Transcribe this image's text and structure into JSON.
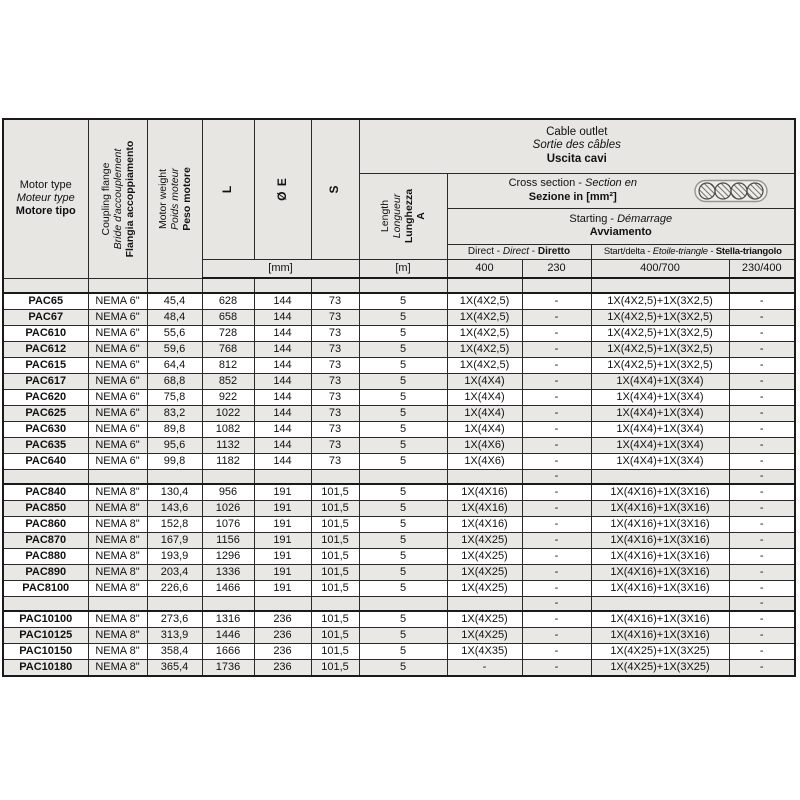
{
  "table": {
    "header": {
      "motor_type": {
        "en": "Motor type",
        "fr": "Moteur type",
        "it": "Motore tipo"
      },
      "coupling_flange": {
        "en": "Coupling flange",
        "fr": "Bride d'accouplement",
        "it": "Flangia accoppiamento"
      },
      "motor_weight": {
        "en": "Motor weight",
        "fr": "Poids moteur",
        "it": "Peso motore"
      },
      "dim_l": "L",
      "dim_e": "Ø E",
      "dim_s": "S",
      "length": {
        "en": "Length",
        "fr": "Longueur",
        "it": "Lunghezza",
        "label": "A"
      },
      "cable_outlet": {
        "en": "Cable outlet",
        "fr": "Sortie des câbles",
        "it": "Uscita cavi"
      },
      "cross_section": {
        "part1": "Cross section - ",
        "part2_italic": "Section en",
        "line2_bold": "Sezione in [mm²]"
      },
      "starting": {
        "part1": "Starting - ",
        "part2_italic": "Démarrage",
        "line2_bold": "Avviamento"
      },
      "direct": {
        "part1": "Direct - ",
        "part2_italic": "Direct",
        "part3": " - ",
        "part4_bold": "Diretto"
      },
      "start_delta": {
        "part1": "Start/delta - ",
        "part2_italic": "Etoile-triangle",
        "part3": " - ",
        "part4_bold": "Stella-triangolo"
      },
      "mm_unit": "[mm]",
      "m_unit": "[m]",
      "voltages": [
        "400",
        "230",
        "400/700",
        "230/400"
      ]
    },
    "icons": {
      "cable_icon": "cable-cross-section-icon"
    },
    "colors": {
      "header_bg": "#e8e6e3",
      "row_shade": "#e9e8e5",
      "border": "#1a1a1a"
    },
    "rows": [
      {
        "separator": true,
        "cells": [
          "",
          "",
          "",
          "",
          "",
          "",
          "",
          "",
          "",
          "",
          ""
        ]
      },
      {
        "separator": false,
        "cells": [
          "PAC65",
          "NEMA 6\"",
          "45,4",
          "628",
          "144",
          "73",
          "5",
          "1X(4X2,5)",
          "-",
          "1X(4X2,5)+1X(3X2,5)",
          "-"
        ]
      },
      {
        "separator": false,
        "cells": [
          "PAC67",
          "NEMA 6\"",
          "48,4",
          "658",
          "144",
          "73",
          "5",
          "1X(4X2,5)",
          "-",
          "1X(4X2,5)+1X(3X2,5)",
          "-"
        ]
      },
      {
        "separator": false,
        "cells": [
          "PAC610",
          "NEMA 6\"",
          "55,6",
          "728",
          "144",
          "73",
          "5",
          "1X(4X2,5)",
          "-",
          "1X(4X2,5)+1X(3X2,5)",
          "-"
        ]
      },
      {
        "separator": false,
        "cells": [
          "PAC612",
          "NEMA 6\"",
          "59,6",
          "768",
          "144",
          "73",
          "5",
          "1X(4X2,5)",
          "-",
          "1X(4X2,5)+1X(3X2,5)",
          "-"
        ]
      },
      {
        "separator": false,
        "cells": [
          "PAC615",
          "NEMA 6\"",
          "64,4",
          "812",
          "144",
          "73",
          "5",
          "1X(4X2,5)",
          "-",
          "1X(4X2,5)+1X(3X2,5)",
          "-"
        ]
      },
      {
        "separator": false,
        "cells": [
          "PAC617",
          "NEMA 6\"",
          "68,8",
          "852",
          "144",
          "73",
          "5",
          "1X(4X4)",
          "-",
          "1X(4X4)+1X(3X4)",
          "-"
        ]
      },
      {
        "separator": false,
        "cells": [
          "PAC620",
          "NEMA 6\"",
          "75,8",
          "922",
          "144",
          "73",
          "5",
          "1X(4X4)",
          "-",
          "1X(4X4)+1X(3X4)",
          "-"
        ]
      },
      {
        "separator": false,
        "cells": [
          "PAC625",
          "NEMA 6\"",
          "83,2",
          "1022",
          "144",
          "73",
          "5",
          "1X(4X4)",
          "-",
          "1X(4X4)+1X(3X4)",
          "-"
        ]
      },
      {
        "separator": false,
        "cells": [
          "PAC630",
          "NEMA 6\"",
          "89,8",
          "1082",
          "144",
          "73",
          "5",
          "1X(4X4)",
          "-",
          "1X(4X4)+1X(3X4)",
          "-"
        ]
      },
      {
        "separator": false,
        "cells": [
          "PAC635",
          "NEMA 6\"",
          "95,6",
          "1132",
          "144",
          "73",
          "5",
          "1X(4X6)",
          "-",
          "1X(4X4)+1X(3X4)",
          "-"
        ]
      },
      {
        "separator": false,
        "cells": [
          "PAC640",
          "NEMA 6\"",
          "99,8",
          "1182",
          "144",
          "73",
          "5",
          "1X(4X6)",
          "-",
          "1X(4X4)+1X(3X4)",
          "-"
        ]
      },
      {
        "separator": true,
        "cells": [
          "",
          "",
          "",
          "",
          "",
          "",
          "",
          "",
          "-",
          "",
          "-"
        ]
      },
      {
        "separator": false,
        "cells": [
          "PAC840",
          "NEMA 8\"",
          "130,4",
          "956",
          "191",
          "101,5",
          "5",
          "1X(4X16)",
          "-",
          "1X(4X16)+1X(3X16)",
          "-"
        ]
      },
      {
        "separator": false,
        "cells": [
          "PAC850",
          "NEMA 8\"",
          "143,6",
          "1026",
          "191",
          "101,5",
          "5",
          "1X(4X16)",
          "-",
          "1X(4X16)+1X(3X16)",
          "-"
        ]
      },
      {
        "separator": false,
        "cells": [
          "PAC860",
          "NEMA 8\"",
          "152,8",
          "1076",
          "191",
          "101,5",
          "5",
          "1X(4X16)",
          "-",
          "1X(4X16)+1X(3X16)",
          "-"
        ]
      },
      {
        "separator": false,
        "cells": [
          "PAC870",
          "NEMA 8\"",
          "167,9",
          "1156",
          "191",
          "101,5",
          "5",
          "1X(4X25)",
          "-",
          "1X(4X16)+1X(3X16)",
          "-"
        ]
      },
      {
        "separator": false,
        "cells": [
          "PAC880",
          "NEMA 8\"",
          "193,9",
          "1296",
          "191",
          "101,5",
          "5",
          "1X(4X25)",
          "-",
          "1X(4X16)+1X(3X16)",
          "-"
        ]
      },
      {
        "separator": false,
        "cells": [
          "PAC890",
          "NEMA 8\"",
          "203,4",
          "1336",
          "191",
          "101,5",
          "5",
          "1X(4X25)",
          "-",
          "1X(4X16)+1X(3X16)",
          "-"
        ]
      },
      {
        "separator": false,
        "cells": [
          "PAC8100",
          "NEMA 8\"",
          "226,6",
          "1466",
          "191",
          "101,5",
          "5",
          "1X(4X25)",
          "-",
          "1X(4X16)+1X(3X16)",
          "-"
        ]
      },
      {
        "separator": true,
        "cells": [
          "",
          "",
          "",
          "",
          "",
          "",
          "",
          "",
          "-",
          "",
          "-"
        ]
      },
      {
        "separator": false,
        "cells": [
          "PAC10100",
          "NEMA 8\"",
          "273,6",
          "1316",
          "236",
          "101,5",
          "5",
          "1X(4X25)",
          "-",
          "1X(4X16)+1X(3X16)",
          "-"
        ]
      },
      {
        "separator": false,
        "cells": [
          "PAC10125",
          "NEMA 8\"",
          "313,9",
          "1446",
          "236",
          "101,5",
          "5",
          "1X(4X25)",
          "-",
          "1X(4X16)+1X(3X16)",
          "-"
        ]
      },
      {
        "separator": false,
        "cells": [
          "PAC10150",
          "NEMA 8\"",
          "358,4",
          "1666",
          "236",
          "101,5",
          "5",
          "1X(4X35)",
          "-",
          "1X(4X25)+1X(3X25)",
          "-"
        ]
      },
      {
        "separator": false,
        "cells": [
          "PAC10180",
          "NEMA 8\"",
          "365,4",
          "1736",
          "236",
          "101,5",
          "5",
          "-",
          "-",
          "1X(4X25)+1X(3X25)",
          "-"
        ]
      }
    ]
  }
}
